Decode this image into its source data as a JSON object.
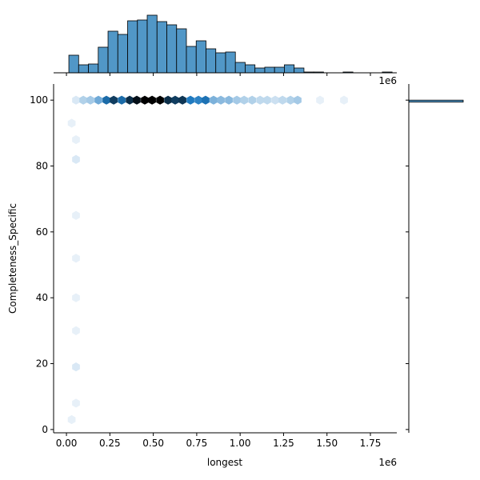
{
  "chart_data": [
    {
      "type": "hexbin",
      "x_label": "longest",
      "y_label": "Completeness_Specific",
      "x_offset_label": "1e6",
      "x": [
        55000,
        97000,
        138000,
        184000,
        230000,
        272000,
        318000,
        364000,
        405000,
        451000,
        493000,
        539000,
        585000,
        626000,
        668000,
        714000,
        760000,
        801000,
        847000,
        889000,
        935000,
        981000,
        1023000,
        1069000,
        1115000,
        1156000,
        1202000,
        1244000,
        1290000,
        1331000,
        1460000,
        1598000,
        55000,
        55000,
        55000,
        55000,
        55000,
        55000,
        55000,
        30000,
        30000,
        55000
      ],
      "y": [
        100,
        100,
        100,
        100,
        100,
        100,
        100,
        100,
        100,
        100,
        100,
        100,
        100,
        100,
        100,
        100,
        100,
        100,
        100,
        100,
        100,
        100,
        100,
        100,
        100,
        100,
        100,
        100,
        100,
        100,
        100,
        100,
        82,
        65,
        52,
        40,
        30,
        19,
        8,
        3,
        93,
        88
      ],
      "counts": [
        2,
        5,
        6,
        10,
        18,
        24,
        18,
        26,
        30,
        32,
        32,
        32,
        26,
        24,
        25,
        16,
        15,
        17,
        9,
        8,
        8,
        6,
        5,
        5,
        4,
        4,
        3,
        4,
        5,
        6,
        1,
        1,
        2,
        1,
        1,
        1,
        1,
        2,
        1,
        1,
        1,
        1
      ],
      "cmap": [
        "#f4f8fc",
        "#1f7ac0",
        "#000000"
      ],
      "xlim": [
        -74000,
        1902000
      ],
      "xticks": [
        {
          "value": 0,
          "label": "0.00"
        },
        {
          "value": 250000,
          "label": "0.25"
        },
        {
          "value": 500000,
          "label": "0.50"
        },
        {
          "value": 750000,
          "label": "0.75"
        },
        {
          "value": 1000000,
          "label": "1.00"
        },
        {
          "value": 1250000,
          "label": "1.25"
        },
        {
          "value": 1500000,
          "label": "1.50"
        },
        {
          "value": 1750000,
          "label": "1.75"
        }
      ],
      "ylim": [
        -1,
        104.9
      ],
      "yticks": [
        0,
        20,
        40,
        60,
        80,
        100
      ]
    },
    {
      "type": "histogram",
      "orientation": "vertical",
      "color": "#5197c7",
      "bins": [
        13800,
        70200,
        126600,
        183000,
        239400,
        295800,
        352200,
        408600,
        465000,
        521400,
        577800,
        634200,
        690600,
        747000,
        803400,
        859800,
        916200,
        972600,
        1029000,
        1085400,
        1141800,
        1198200,
        1254600,
        1311000,
        1367400,
        1423800,
        1480200,
        1536600,
        1593000,
        1649400,
        1705800,
        1762200,
        1818600,
        1875000
      ],
      "counts": [
        22,
        10,
        11,
        32,
        52,
        48,
        65,
        66,
        72,
        64,
        60,
        55,
        33,
        40,
        30,
        25,
        26,
        13,
        10,
        6,
        7,
        7,
        10,
        6,
        1,
        1,
        0,
        0,
        1,
        0,
        0,
        0,
        1
      ],
      "ylim": [
        0,
        76
      ]
    },
    {
      "type": "histogram",
      "orientation": "horizontal",
      "color": "#5197c7",
      "bins": [
        99.4,
        100.0
      ],
      "counts": [
        68
      ],
      "xlim": [
        0,
        70
      ]
    }
  ]
}
